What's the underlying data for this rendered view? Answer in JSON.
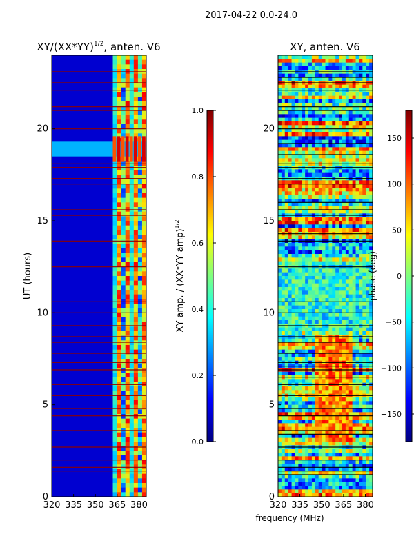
{
  "figure": {
    "suptitle": "2017-04-22 0.0-24.0",
    "shared_xlabel": "frequency (MHz)"
  },
  "colors": {
    "jet": [
      "#00007f",
      "#0000ff",
      "#007fff",
      "#00ffff",
      "#7fff7f",
      "#ffff00",
      "#ff7f00",
      "#ff0000",
      "#7f0000"
    ]
  },
  "chart_data": [
    {
      "type": "heatmap",
      "panel": "amplitude",
      "title_main": "XY/(XX*YY)",
      "title_sup": "1/2",
      "title_tail": ", anten. V6",
      "xlabel": "",
      "ylabel": "UT (hours)",
      "xlim": [
        320,
        385
      ],
      "ylim": [
        0,
        24
      ],
      "xticks": [
        320,
        335,
        350,
        365,
        380
      ],
      "yticks": [
        0,
        5,
        10,
        15,
        20
      ],
      "colorbar": {
        "label_main": "XY amp. / (XX*YY amp)",
        "label_sup": "1/2",
        "range": [
          0.0,
          1.0
        ],
        "ticks": [
          "0.0",
          "0.2",
          "0.4",
          "0.6",
          "0.8",
          "1.0"
        ],
        "tick_values": [
          0.0,
          0.2,
          0.4,
          0.6,
          0.8,
          1.0
        ]
      },
      "notes": {
        "active_band_start_mhz": 362,
        "bright_time_band_hours": [
          18.5,
          19.3
        ],
        "flagged_rows_hours": [
          1.4,
          1.6,
          2.0,
          2.7,
          3.6,
          4.4,
          4.8,
          5.5,
          6.1,
          6.9,
          7.3,
          7.8,
          8.4,
          8.7,
          9.3,
          10.0,
          10.6,
          12.5,
          13.9,
          15.3,
          15.6,
          17.0,
          17.3,
          17.9,
          18.1,
          20.0,
          21.0,
          21.2,
          22.1,
          22.5,
          23.1
        ]
      }
    },
    {
      "type": "heatmap",
      "panel": "phase",
      "title": "XY, anten. V6",
      "xlabel": "frequency (MHz)",
      "ylabel": "",
      "xlim": [
        320,
        385
      ],
      "ylim": [
        0,
        24
      ],
      "xticks": [
        320,
        335,
        350,
        365,
        380
      ],
      "yticks": [
        0,
        5,
        10,
        15,
        20
      ],
      "colorbar": {
        "label": "phase (deg)",
        "range": [
          -180,
          180
        ],
        "ticks": [
          "−150",
          "−100",
          "−50",
          "0",
          "50",
          "100",
          "150"
        ],
        "tick_values": [
          -150,
          -100,
          -50,
          0,
          50,
          100,
          150
        ]
      }
    }
  ]
}
